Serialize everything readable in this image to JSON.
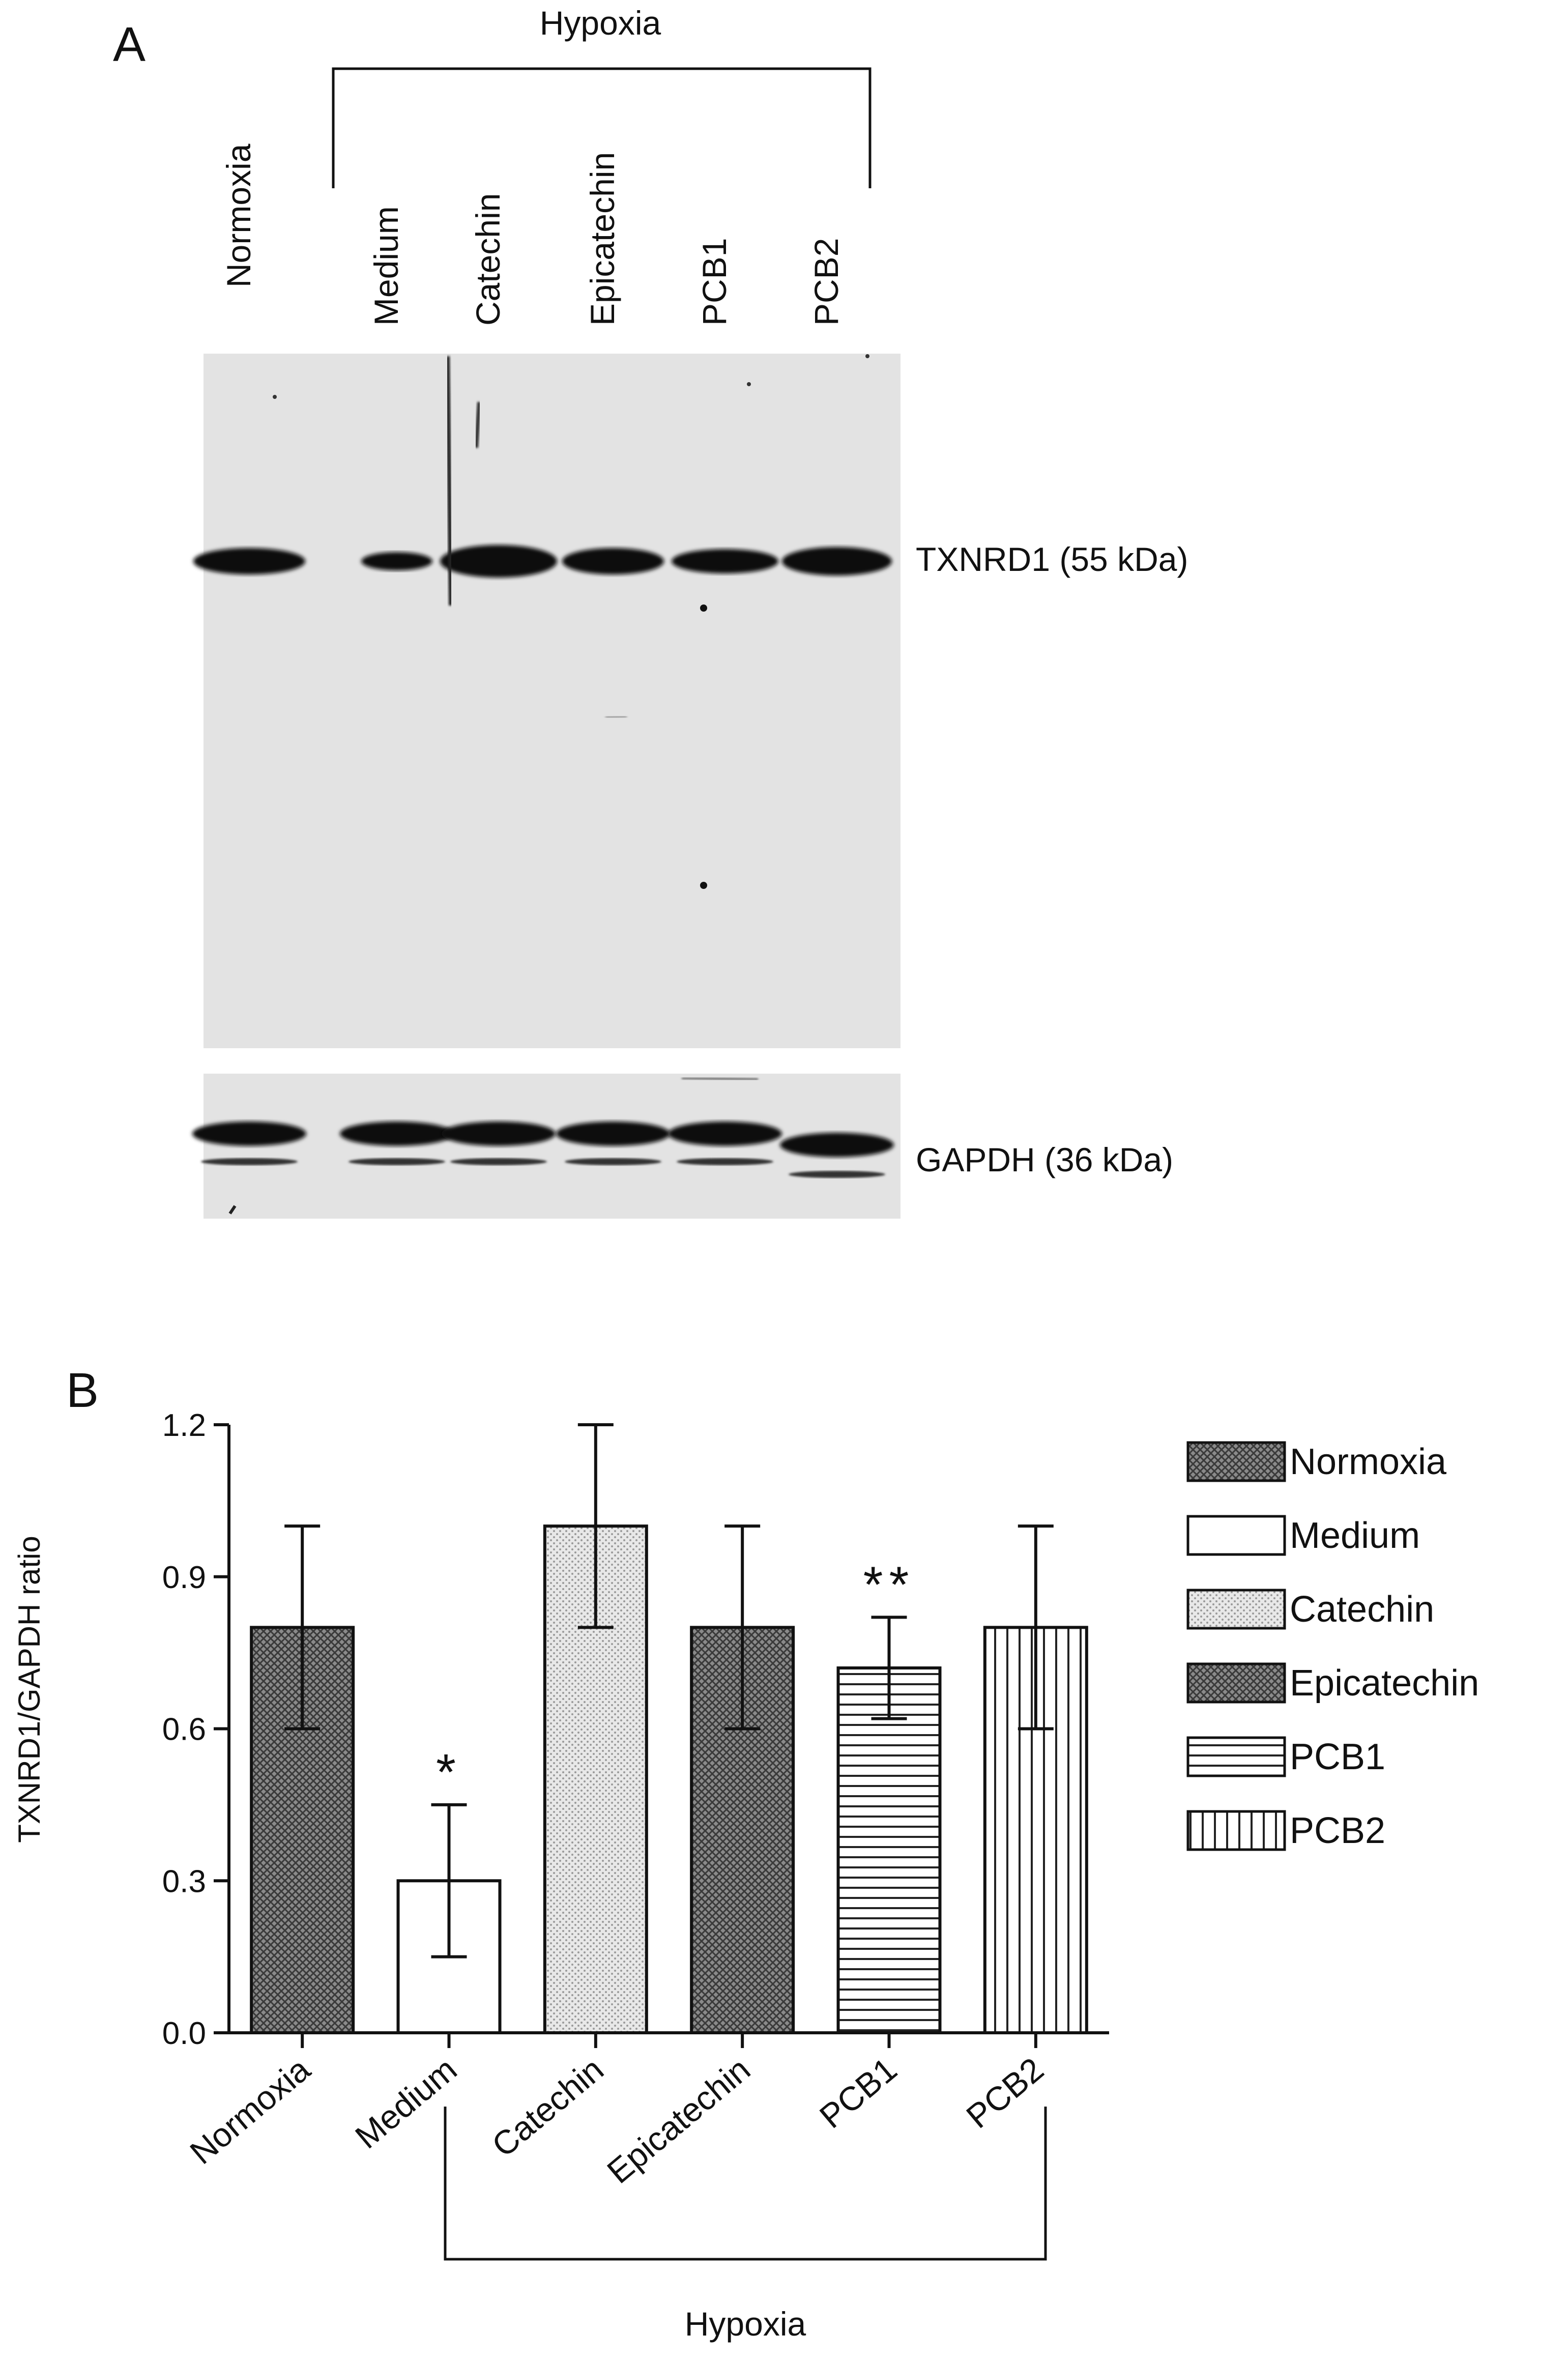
{
  "panel_a": {
    "letter": "A",
    "group_label": "Hypoxia",
    "lanes": [
      "Normoxia",
      "Medium",
      "Catechin",
      "Epicatechin",
      "PCB1",
      "PCB2"
    ],
    "blot_labels": {
      "txnrd1": "TXNRD1 (55 kDa)",
      "gapdh": "GAPDH (36 kDa)"
    },
    "colors": {
      "membrane": "#e3e3e3",
      "band": "#111111"
    }
  },
  "panel_b": {
    "letter": "B",
    "group_label": "Hypoxia"
  },
  "chart_data": {
    "type": "bar",
    "title": "",
    "xlabel": "",
    "ylabel": "TXNRD1/GAPDH ratio",
    "ylim": [
      0,
      1.2
    ],
    "yticks": [
      "0.0",
      "0.3",
      "0.6",
      "0.9",
      "1.2"
    ],
    "ytick_values": [
      0,
      0.3,
      0.6,
      0.9,
      1.2
    ],
    "categories": [
      "Normoxia",
      "Medium",
      "Catechin",
      "Epicatechin",
      "PCB1",
      "PCB2"
    ],
    "values": [
      0.8,
      0.3,
      1.0,
      0.8,
      0.72,
      0.8
    ],
    "error_low": [
      0.6,
      0.15,
      0.8,
      0.6,
      0.62,
      0.6
    ],
    "error_high": [
      1.0,
      0.45,
      1.2,
      1.0,
      0.82,
      1.0
    ],
    "annotations": [
      "",
      "*",
      "",
      "",
      "**",
      ""
    ],
    "patterns": [
      "crosshatch",
      "none",
      "dots",
      "crosshatch",
      "horizontal",
      "vertical"
    ],
    "legend": [
      "Normoxia",
      "Medium",
      "Catechin",
      "Epicatechin",
      "PCB1",
      "PCB2"
    ],
    "legend_position": "right",
    "grid": false
  }
}
